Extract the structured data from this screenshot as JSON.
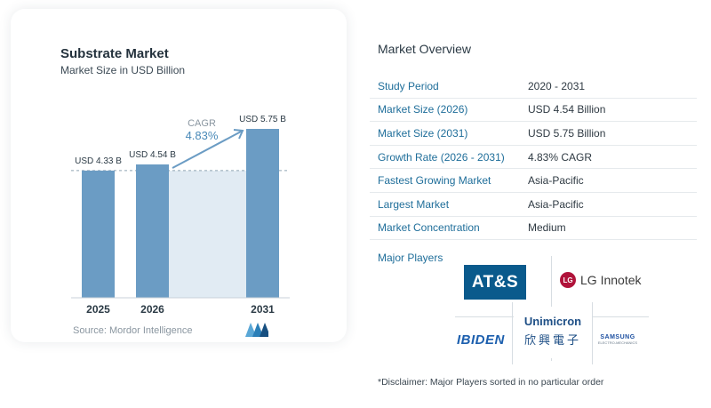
{
  "chart_data": {
    "type": "bar",
    "title": "Substrate Market",
    "subtitle": "Market Size in USD Billion",
    "categories": [
      "2025",
      "2026",
      "2031"
    ],
    "values": [
      4.33,
      4.54,
      5.75
    ],
    "value_labels": [
      "USD 4.33 B",
      "USD 4.54 B",
      "USD 5.75 B"
    ],
    "ylim": [
      0,
      5.75
    ],
    "cagr_label": "CAGR",
    "cagr_value": "4.83%",
    "bar_color": "#6b9cc4",
    "highlight_band_color": "#e1ebf3",
    "arrow_color": "#6b9cc4",
    "reference_line": 4.33,
    "source": "Source:  Mordor Intelligence"
  },
  "overview": {
    "title": "Market Overview",
    "rows": [
      {
        "label": "Study Period",
        "value": "2020 - 2031"
      },
      {
        "label": "Market Size (2026)",
        "value": "USD 4.54 Billion"
      },
      {
        "label": "Market Size (2031)",
        "value": "USD 5.75 Billion"
      },
      {
        "label": "Growth Rate (2026 - 2031)",
        "value": "4.83% CAGR"
      },
      {
        "label": "Fastest Growing Market",
        "value": "Asia-Pacific"
      },
      {
        "label": "Largest Market",
        "value": "Asia-Pacific"
      },
      {
        "label": "Market Concentration",
        "value": "Medium"
      }
    ]
  },
  "players": {
    "title": "Major Players",
    "ats": "AT&S",
    "lg_mark": "LG",
    "lg_text": "LG Innotek",
    "ibiden": "IBIDEN",
    "unimicron_en": "Unimicron",
    "unimicron_cn": "欣興電子",
    "samsung": "SAMSUNG",
    "samsung_sub": "ELECTRO-MECHANICS"
  },
  "disclaimer": "*Disclaimer: Major Players sorted in no particular order",
  "colors": {
    "label_blue": "#1f6e9a",
    "bar": "#6b9cc4",
    "ats_bg": "#0a5a8c",
    "lg_red": "#b0133a"
  }
}
